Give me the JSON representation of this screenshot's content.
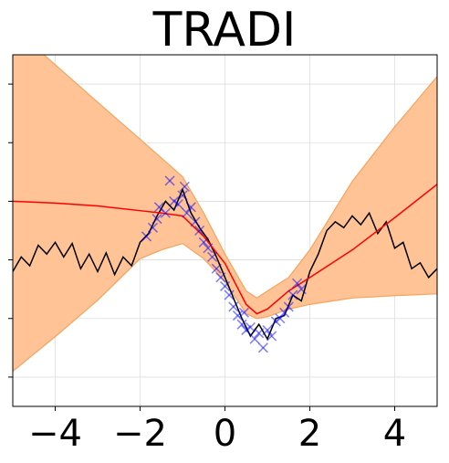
{
  "chart_data": {
    "type": "regression",
    "title": "TRADI",
    "xlim": [
      -5,
      5
    ],
    "ylim": [
      -2.5,
      3.5
    ],
    "xticks": [
      {
        "value": -4,
        "label": "−4"
      },
      {
        "value": -2,
        "label": "−2"
      },
      0,
      2,
      4
    ],
    "yticks": [
      -2,
      -1,
      0,
      1,
      2,
      3
    ],
    "grid": true,
    "series": [
      {
        "type": "band",
        "color": "#ffc396",
        "edge_color": "#f6a35c",
        "x": [
          -5,
          -4,
          -3,
          -2,
          -1.5,
          -1,
          -0.5,
          0,
          0.5,
          0.75,
          1,
          1.5,
          2,
          3,
          4,
          5
        ],
        "upper": [
          3.97,
          3.33,
          2.69,
          2.06,
          1.74,
          1.42,
          0.8,
          0.1,
          -0.53,
          -0.65,
          -0.53,
          -0.3,
          0.17,
          1.34,
          2.27,
          3.13
        ],
        "lower": [
          -1.9,
          -1.31,
          -0.69,
          0.02,
          0.17,
          0.28,
          0.02,
          -0.37,
          -0.92,
          -1.0,
          -0.97,
          -0.84,
          -0.76,
          -0.65,
          -0.61,
          -0.58
        ]
      },
      {
        "type": "line",
        "color": "#000000",
        "x": [
          -5,
          -4.8,
          -4.6,
          -4.4,
          -4.2,
          -4.0,
          -3.8,
          -3.6,
          -3.4,
          -3.2,
          -3.0,
          -2.8,
          -2.6,
          -2.4,
          -2.2,
          -2.0,
          -1.8,
          -1.6,
          -1.4,
          -1.2,
          -1.0,
          -0.8,
          -0.6,
          -0.4,
          -0.2,
          0.0,
          0.2,
          0.4,
          0.6,
          0.8,
          1.0,
          1.2,
          1.4,
          1.6,
          1.8,
          2.0,
          2.2,
          2.4,
          2.6,
          2.8,
          3.0,
          3.2,
          3.4,
          3.6,
          3.8,
          4.0,
          4.2,
          4.4,
          4.6,
          4.8,
          5.0
        ],
        "values": [
          -0.2,
          0.05,
          -0.1,
          0.25,
          0.1,
          0.3,
          0.05,
          0.28,
          -0.15,
          0.1,
          -0.2,
          0.12,
          -0.25,
          0.05,
          -0.1,
          0.3,
          0.45,
          0.75,
          1.0,
          0.85,
          1.2,
          0.8,
          0.55,
          0.35,
          0.05,
          -0.3,
          -0.65,
          -1.0,
          -1.3,
          -1.1,
          -1.35,
          -1.0,
          -0.95,
          -0.6,
          -0.7,
          -0.2,
          0.1,
          0.5,
          0.65,
          0.55,
          0.75,
          0.6,
          0.8,
          0.45,
          0.65,
          0.2,
          0.3,
          -0.15,
          -0.05,
          -0.3,
          -0.15
        ]
      },
      {
        "type": "line",
        "color": "#ff0000",
        "x": [
          -5,
          -4,
          -3,
          -2,
          -1.5,
          -1,
          -0.5,
          0,
          0.5,
          0.75,
          1,
          1.5,
          2,
          3,
          4,
          5
        ],
        "values": [
          1.0,
          0.97,
          0.92,
          0.84,
          0.8,
          0.75,
          0.4,
          -0.06,
          -0.76,
          -0.92,
          -0.84,
          -0.53,
          -0.3,
          0.17,
          0.72,
          1.29
        ]
      },
      {
        "type": "scatter",
        "color": "#0000ff",
        "x": [
          -1.85,
          -1.7,
          -1.55,
          -1.4,
          -1.3,
          -1.2,
          -1.1,
          -1.0,
          -0.9,
          -0.8,
          -0.7,
          -0.6,
          -0.5,
          -0.4,
          -0.3,
          -0.2,
          -0.1,
          0.0,
          0.1,
          0.2,
          0.3,
          0.4,
          0.5,
          0.6,
          0.7,
          0.8,
          0.9,
          1.0,
          1.1,
          1.2,
          1.3,
          1.4,
          1.5,
          1.6,
          1.7,
          1.8,
          -1.6,
          -0.95,
          0.45
        ],
        "values": [
          0.4,
          0.55,
          0.9,
          0.8,
          1.35,
          1.0,
          0.95,
          1.1,
          0.8,
          0.9,
          0.65,
          0.5,
          0.3,
          0.2,
          0.05,
          -0.15,
          -0.3,
          -0.45,
          -0.6,
          -0.8,
          -0.95,
          -1.1,
          -1.2,
          -1.15,
          -1.35,
          -1.25,
          -1.5,
          -1.2,
          -1.3,
          -1.05,
          -1.0,
          -0.9,
          -0.8,
          -0.6,
          -0.4,
          -0.5,
          0.7,
          1.25,
          -0.9
        ]
      }
    ]
  }
}
